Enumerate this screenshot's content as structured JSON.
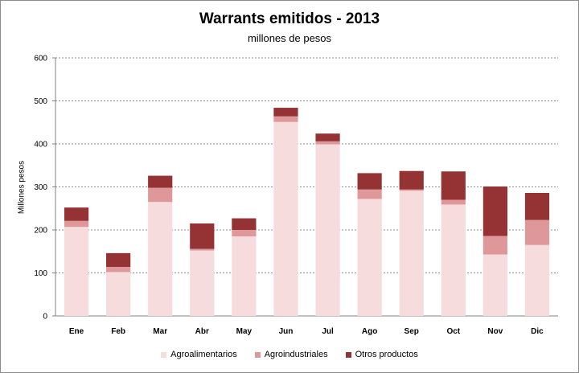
{
  "chart_data": {
    "type": "bar",
    "stacked": true,
    "title": "Warrants emitidos  - 2013",
    "subtitle": "millones de pesos",
    "xlabel": "",
    "ylabel": "Millones pesos",
    "ylim": [
      0,
      600
    ],
    "yticks": [
      "0",
      "100",
      "200",
      "300",
      "400",
      "500",
      "600"
    ],
    "grid": "horizontal dashed",
    "legend_position": "bottom",
    "categories": [
      "Ene",
      "Feb",
      "Mar",
      "Abr",
      "May",
      "Jun",
      "Jul",
      "Ago",
      "Sep",
      "Oct",
      "Nov",
      "Dic"
    ],
    "series": [
      {
        "name": "Agroalimentarios",
        "color": "#f6dcdd",
        "values": [
          207,
          102,
          265,
          152,
          185,
          451,
          399,
          272,
          291,
          259,
          143,
          165
        ]
      },
      {
        "name": "Agroindustriales",
        "color": "#df9899",
        "values": [
          14,
          12,
          33,
          4,
          15,
          13,
          7,
          22,
          3,
          11,
          43,
          58
        ]
      },
      {
        "name": "Otros productos",
        "color": "#953234",
        "values": [
          31,
          32,
          28,
          59,
          27,
          20,
          18,
          38,
          43,
          66,
          115,
          63
        ]
      }
    ]
  }
}
